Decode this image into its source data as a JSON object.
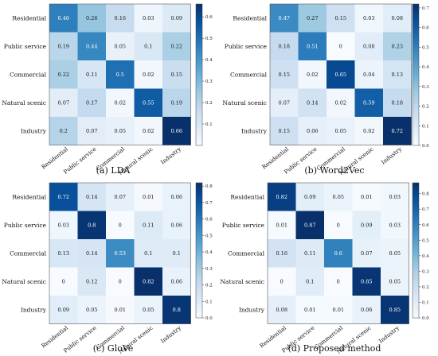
{
  "figure": {
    "colormap": [
      "#f7fbff",
      "#deebf7",
      "#c6dbef",
      "#9ecae1",
      "#6baed6",
      "#4292c6",
      "#2171b5",
      "#08519c",
      "#08306b"
    ]
  },
  "chart_data": [
    {
      "type": "heatmap",
      "caption": "(a) LDA",
      "row_labels": [
        "Residential",
        "Public service",
        "Commercial",
        "Natural scenic",
        "Industry"
      ],
      "col_labels": [
        "Residential",
        "Public service",
        "Commercial",
        "Natural scenic",
        "Industry"
      ],
      "values": [
        [
          0.46,
          0.26,
          0.16,
          0.03,
          0.09
        ],
        [
          0.19,
          0.44,
          0.05,
          0.1,
          0.22
        ],
        [
          0.22,
          0.11,
          0.5,
          0.02,
          0.15
        ],
        [
          0.07,
          0.17,
          0.02,
          0.55,
          0.19
        ],
        [
          0.2,
          0.07,
          0.05,
          0.02,
          0.66
        ]
      ],
      "colorbar": {
        "min": 0,
        "max": 0.66,
        "ticks": [
          0.1,
          0.2,
          0.3,
          0.4,
          0.5,
          0.6
        ]
      }
    },
    {
      "type": "heatmap",
      "caption": "(b) Word2Vec",
      "row_labels": [
        "Residential",
        "Public service",
        "Commercial",
        "Natural scenic",
        "Industry"
      ],
      "col_labels": [
        "Residential",
        "Public service",
        "Commercial",
        "Natural scenic",
        "Industry"
      ],
      "values": [
        [
          0.47,
          0.27,
          0.15,
          0.03,
          0.08
        ],
        [
          0.18,
          0.51,
          0.0,
          0.08,
          0.23
        ],
        [
          0.15,
          0.02,
          0.65,
          0.04,
          0.13
        ],
        [
          0.07,
          0.14,
          0.02,
          0.59,
          0.18
        ],
        [
          0.15,
          0.06,
          0.05,
          0.02,
          0.72
        ]
      ],
      "colorbar": {
        "min": 0,
        "max": 0.72,
        "ticks": [
          0.0,
          0.1,
          0.2,
          0.3,
          0.4,
          0.5,
          0.6,
          0.7
        ]
      }
    },
    {
      "type": "heatmap",
      "caption": "(c) GloVe",
      "row_labels": [
        "Residential",
        "Public service",
        "Commercial",
        "Natural scenic",
        "Industry"
      ],
      "col_labels": [
        "Residential",
        "Public service",
        "Commercial",
        "Natural scenic",
        "Industry"
      ],
      "values": [
        [
          0.72,
          0.14,
          0.07,
          0.01,
          0.06
        ],
        [
          0.03,
          0.8,
          0.0,
          0.11,
          0.06
        ],
        [
          0.13,
          0.14,
          0.53,
          0.1,
          0.1
        ],
        [
          0.0,
          0.12,
          0.0,
          0.82,
          0.06
        ],
        [
          0.09,
          0.05,
          0.01,
          0.05,
          0.8
        ]
      ],
      "colorbar": {
        "min": 0,
        "max": 0.82,
        "ticks": [
          0.0,
          0.1,
          0.2,
          0.3,
          0.4,
          0.5,
          0.6,
          0.7,
          0.8
        ]
      }
    },
    {
      "type": "heatmap",
      "caption": "(d) Proposed method",
      "row_labels": [
        "Residential",
        "Public service",
        "Commercial",
        "Natural scenic",
        "Industry"
      ],
      "col_labels": [
        "Residential",
        "Public service",
        "Commercial",
        "Natural scenic",
        "Industry"
      ],
      "values": [
        [
          0.82,
          0.09,
          0.05,
          0.01,
          0.03
        ],
        [
          0.01,
          0.87,
          0.0,
          0.09,
          0.03
        ],
        [
          0.16,
          0.11,
          0.6,
          0.07,
          0.05
        ],
        [
          0.0,
          0.1,
          0.0,
          0.85,
          0.05
        ],
        [
          0.08,
          0.01,
          0.01,
          0.06,
          0.85
        ]
      ],
      "colorbar": {
        "min": 0,
        "max": 0.87,
        "ticks": [
          0.0,
          0.1,
          0.2,
          0.3,
          0.4,
          0.5,
          0.6,
          0.7,
          0.8
        ]
      }
    }
  ]
}
